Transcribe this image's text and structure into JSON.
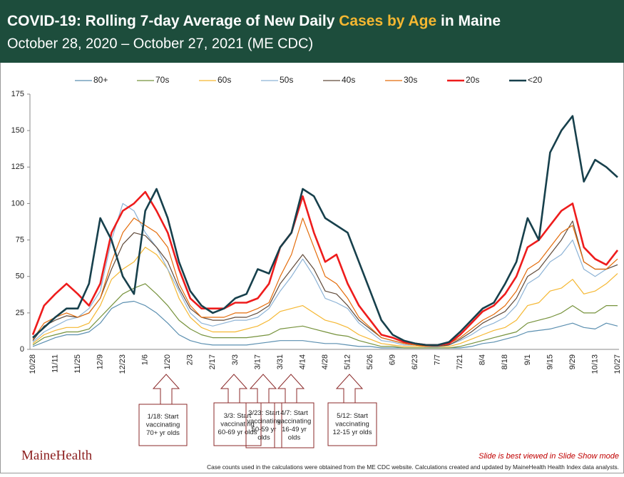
{
  "chart_data": {
    "type": "line",
    "title": {
      "before": "COVID-19: Rolling 7-day Average of New Daily ",
      "highlight": "Cases by Age",
      "after": " in Maine"
    },
    "subtitle": "October 28, 2020 –  October 27, 2021  (ME CDC)",
    "categories": [
      "10/28",
      null,
      "11/11",
      null,
      "11/25",
      null,
      "12/9",
      null,
      "12/23",
      null,
      "1/6",
      null,
      "1/20",
      null,
      "2/3",
      null,
      "2/17",
      null,
      "3/3",
      null,
      "3/17",
      null,
      "3/31",
      null,
      "4/14",
      null,
      "4/28",
      null,
      "5/12",
      null,
      "5/26",
      null,
      "6/9",
      null,
      "6/23",
      null,
      "7/7",
      null,
      "7/21",
      null,
      "8/4",
      null,
      "8/18",
      null,
      "9/1",
      null,
      "9/15",
      null,
      "9/29",
      null,
      "10/13",
      null,
      "10/27"
    ],
    "ylim": [
      0,
      175
    ],
    "yticks": [
      0,
      25,
      50,
      75,
      100,
      125,
      150,
      175
    ],
    "grid": false,
    "legend": "top",
    "series": [
      {
        "name": "80+",
        "color": "#5b8fb0",
        "width": 1.2,
        "values": [
          2,
          5,
          8,
          10,
          10,
          12,
          18,
          28,
          32,
          33,
          30,
          25,
          18,
          10,
          6,
          4,
          3,
          3,
          3,
          3,
          4,
          5,
          6,
          6,
          6,
          5,
          4,
          4,
          3,
          2,
          2,
          1,
          1,
          1,
          1,
          1,
          1,
          1,
          1,
          2,
          4,
          5,
          7,
          9,
          12,
          13,
          14,
          16,
          18,
          15,
          14,
          18,
          16
        ]
      },
      {
        "name": "70s",
        "color": "#76923c",
        "width": 1.2,
        "values": [
          3,
          8,
          10,
          12,
          12,
          14,
          22,
          30,
          38,
          42,
          45,
          38,
          30,
          20,
          14,
          10,
          8,
          8,
          8,
          8,
          9,
          10,
          14,
          15,
          16,
          14,
          12,
          10,
          9,
          6,
          4,
          2,
          2,
          1,
          1,
          1,
          1,
          1,
          2,
          4,
          6,
          8,
          10,
          12,
          18,
          20,
          22,
          25,
          30,
          25,
          25,
          30,
          30
        ]
      },
      {
        "name": "60s",
        "color": "#f5b731",
        "width": 1.2,
        "values": [
          4,
          10,
          13,
          15,
          15,
          18,
          30,
          48,
          55,
          60,
          70,
          65,
          55,
          35,
          22,
          15,
          12,
          12,
          12,
          14,
          16,
          20,
          26,
          28,
          30,
          25,
          20,
          18,
          15,
          10,
          7,
          4,
          3,
          2,
          2,
          2,
          2,
          2,
          4,
          7,
          10,
          13,
          15,
          20,
          30,
          32,
          40,
          42,
          48,
          38,
          40,
          45,
          52
        ]
      },
      {
        "name": "50s",
        "color": "#8db3d6",
        "width": 1.2,
        "values": [
          5,
          12,
          16,
          20,
          22,
          28,
          40,
          75,
          100,
          95,
          80,
          70,
          55,
          40,
          25,
          18,
          16,
          18,
          20,
          20,
          22,
          28,
          40,
          50,
          62,
          50,
          35,
          32,
          28,
          18,
          12,
          6,
          5,
          3,
          3,
          2,
          2,
          3,
          6,
          10,
          15,
          18,
          22,
          30,
          45,
          50,
          60,
          65,
          75,
          55,
          50,
          55,
          58
        ]
      },
      {
        "name": "40s",
        "color": "#604a3a",
        "width": 1.2,
        "values": [
          6,
          16,
          20,
          23,
          22,
          25,
          35,
          55,
          72,
          80,
          78,
          70,
          60,
          42,
          28,
          22,
          20,
          20,
          22,
          22,
          25,
          30,
          45,
          55,
          65,
          55,
          40,
          38,
          30,
          20,
          14,
          8,
          6,
          4,
          3,
          2,
          2,
          3,
          7,
          12,
          18,
          22,
          26,
          35,
          50,
          55,
          65,
          75,
          88,
          60,
          55,
          55,
          58
        ]
      },
      {
        "name": "30s",
        "color": "#e46c0a",
        "width": 1.2,
        "values": [
          7,
          18,
          22,
          25,
          22,
          25,
          35,
          60,
          80,
          90,
          85,
          80,
          70,
          45,
          30,
          22,
          22,
          22,
          25,
          25,
          28,
          32,
          50,
          65,
          90,
          70,
          50,
          45,
          35,
          22,
          15,
          8,
          6,
          4,
          3,
          2,
          3,
          4,
          8,
          14,
          20,
          24,
          30,
          40,
          55,
          60,
          70,
          80,
          85,
          60,
          55,
          55,
          62
        ]
      },
      {
        "name": "20s",
        "color": "#ee1c1c",
        "width": 2.6,
        "values": [
          10,
          30,
          38,
          45,
          38,
          30,
          45,
          80,
          95,
          100,
          108,
          95,
          80,
          55,
          35,
          28,
          28,
          28,
          32,
          32,
          35,
          45,
          70,
          80,
          105,
          80,
          60,
          65,
          45,
          30,
          20,
          10,
          8,
          5,
          4,
          3,
          3,
          4,
          10,
          18,
          26,
          30,
          38,
          50,
          70,
          75,
          85,
          95,
          100,
          70,
          62,
          58,
          68
        ]
      },
      {
        "name": "<20",
        "color": "#17404c",
        "width": 2.6,
        "values": [
          8,
          15,
          22,
          28,
          28,
          45,
          90,
          75,
          50,
          38,
          95,
          110,
          90,
          60,
          40,
          30,
          25,
          28,
          35,
          38,
          55,
          52,
          70,
          80,
          110,
          105,
          90,
          85,
          80,
          60,
          40,
          20,
          10,
          6,
          4,
          3,
          3,
          5,
          12,
          20,
          28,
          32,
          45,
          60,
          90,
          75,
          135,
          150,
          160,
          115,
          130,
          125,
          118
        ]
      }
    ],
    "annotations": [
      {
        "lines": [
          "1/18: Start",
          "vaccinating",
          "70+ yr olds"
        ]
      },
      {
        "lines": [
          "3/3: Start",
          "vaccinating",
          "60-69 yr olds"
        ]
      },
      {
        "lines": [
          "3/23: Start",
          "vaccinating",
          "50-59 yr",
          "olds"
        ]
      },
      {
        "lines": [
          "4/7: Start",
          "vaccinating",
          "16-49 yr",
          "olds"
        ]
      },
      {
        "lines": [
          "5/12: Start",
          "vaccinating",
          "12-15 yr olds"
        ]
      }
    ],
    "logo": "MaineHealth",
    "note": "Slide is best viewed in Slide Show mode",
    "footnote": "Case counts used in the calculations were obtained from the ME CDC website.  Calculations created and updated by MaineHealth Health Index data analysts."
  }
}
